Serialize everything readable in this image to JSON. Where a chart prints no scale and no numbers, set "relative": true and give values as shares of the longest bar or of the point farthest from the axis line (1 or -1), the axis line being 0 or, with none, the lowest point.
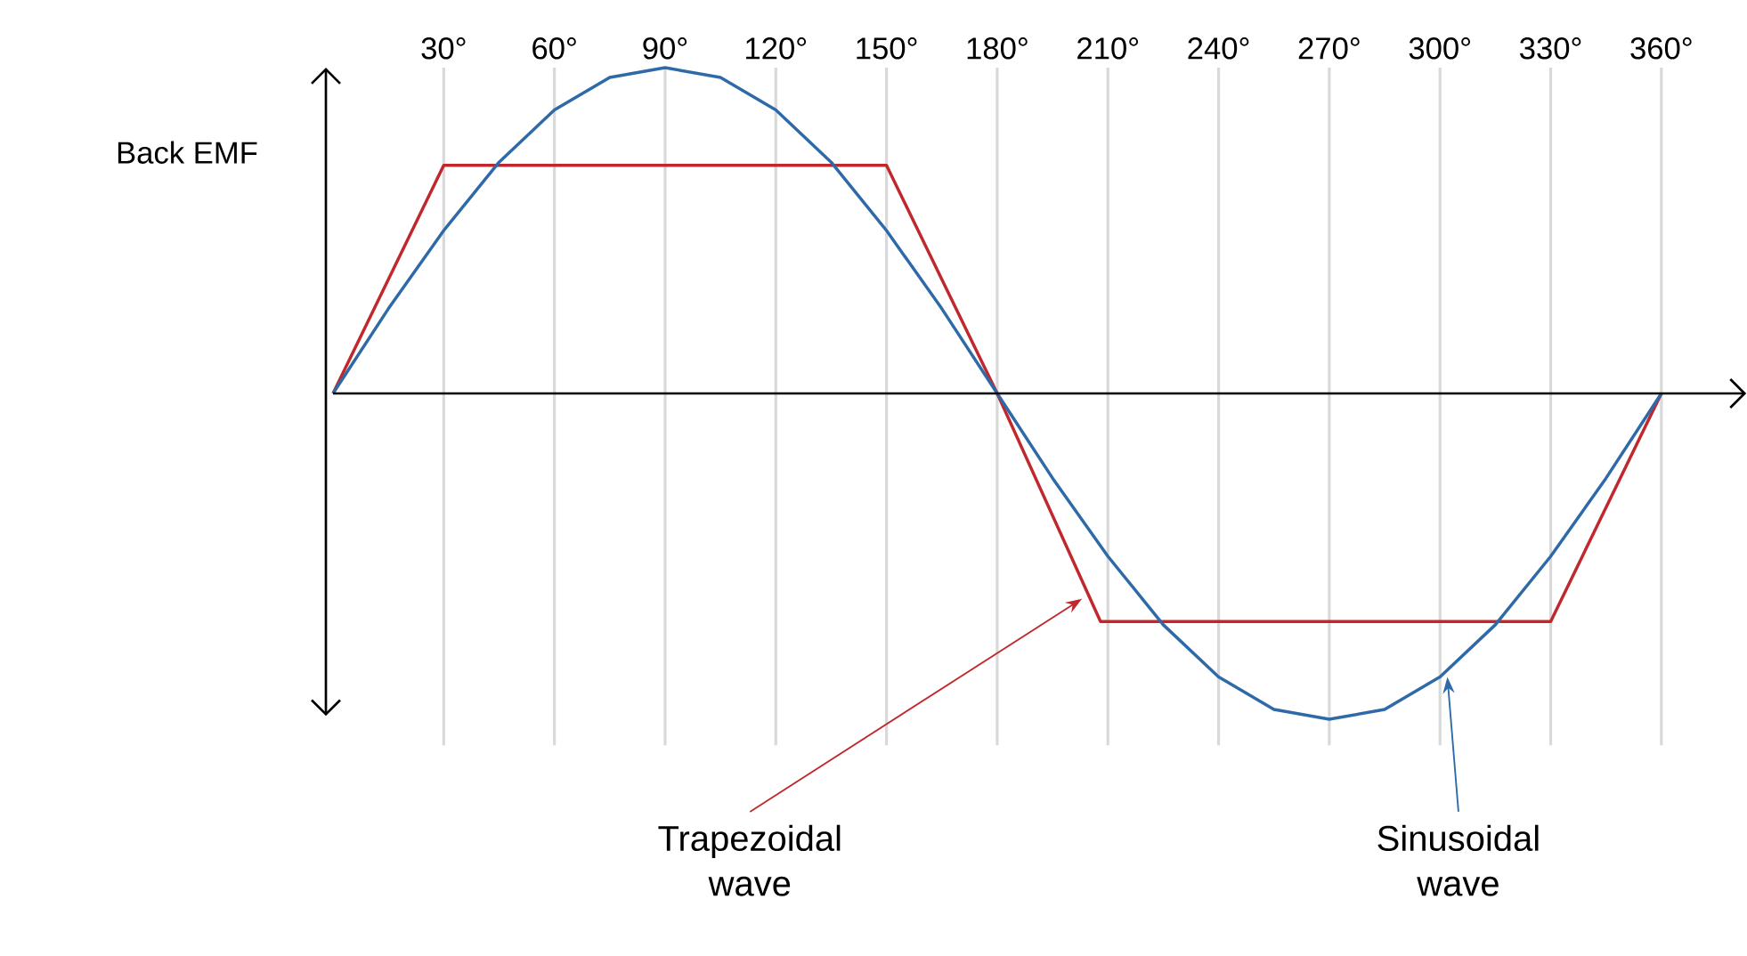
{
  "chart_data": {
    "type": "line",
    "relative": true,
    "ylabel": "Back EMF",
    "xlim": [
      0,
      383
    ],
    "xticks": [
      {
        "value": 30,
        "label": "30°"
      },
      {
        "value": 60,
        "label": "60°"
      },
      {
        "value": 90,
        "label": "90°"
      },
      {
        "value": 120,
        "label": "120°"
      },
      {
        "value": 150,
        "label": "150°"
      },
      {
        "value": 180,
        "label": "180°"
      },
      {
        "value": 210,
        "label": "210°"
      },
      {
        "value": 240,
        "label": "240°"
      },
      {
        "value": 270,
        "label": "270°"
      },
      {
        "value": 300,
        "label": "300°"
      },
      {
        "value": 330,
        "label": "330°"
      },
      {
        "value": 360,
        "label": "360°"
      }
    ],
    "tick_labels": "x",
    "grid": "x",
    "series": [
      {
        "color": "#c0282d",
        "x": [
          0,
          30,
          150,
          180,
          208,
          330,
          360
        ],
        "values": [
          0,
          0.7,
          0.7,
          0,
          -0.7,
          -0.7,
          0
        ]
      },
      {
        "color": "#2f6aa8",
        "x": [
          0,
          15,
          30,
          45,
          60,
          75,
          90,
          105,
          120,
          135,
          150,
          165,
          180,
          195,
          210,
          225,
          240,
          255,
          270,
          285,
          300,
          315,
          330,
          345,
          360
        ],
        "values": [
          0,
          0.26,
          0.5,
          0.71,
          0.87,
          0.97,
          1,
          0.97,
          0.87,
          0.71,
          0.5,
          0.26,
          0,
          -0.26,
          -0.5,
          -0.71,
          -0.87,
          -0.97,
          -1,
          -0.97,
          -0.87,
          -0.71,
          -0.5,
          -0.26,
          0
        ]
      }
    ],
    "annotations": [
      {
        "text": "Trapezoidal wave",
        "x": 203,
        "y": -0.63
      },
      {
        "text": "Sinusoidal wave",
        "x": 302,
        "y": -0.87
      }
    ]
  }
}
